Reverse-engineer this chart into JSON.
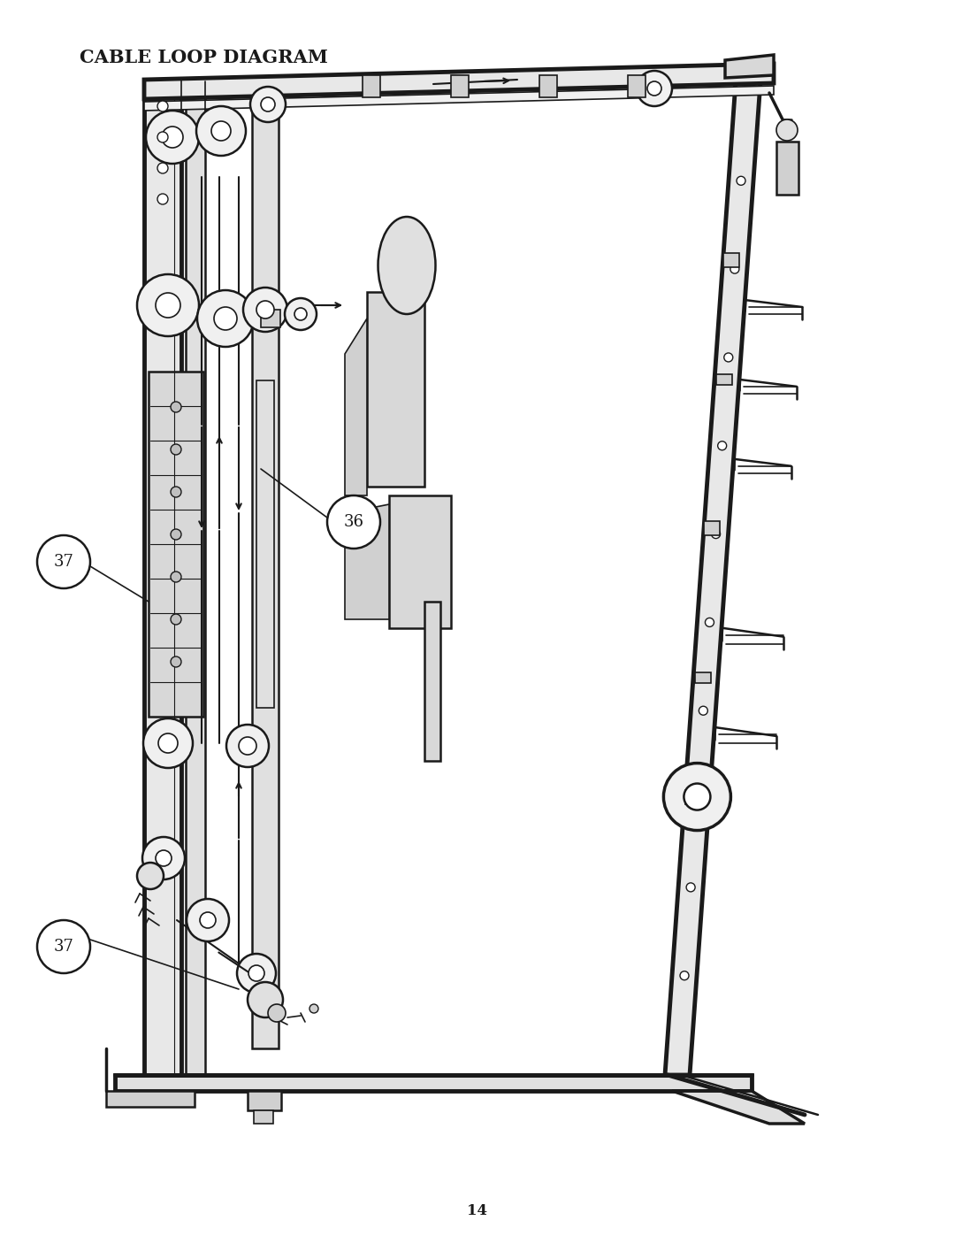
{
  "title": "CABLE LOOP DIAGRAM",
  "page_number": "14",
  "bg_color": "#ffffff",
  "line_color": "#1a1a1a",
  "fig_width": 10.8,
  "fig_height": 13.97,
  "dpi": 100,
  "title_fontsize": 15,
  "page_num_fontsize": 12,
  "label_fontsize": 13
}
